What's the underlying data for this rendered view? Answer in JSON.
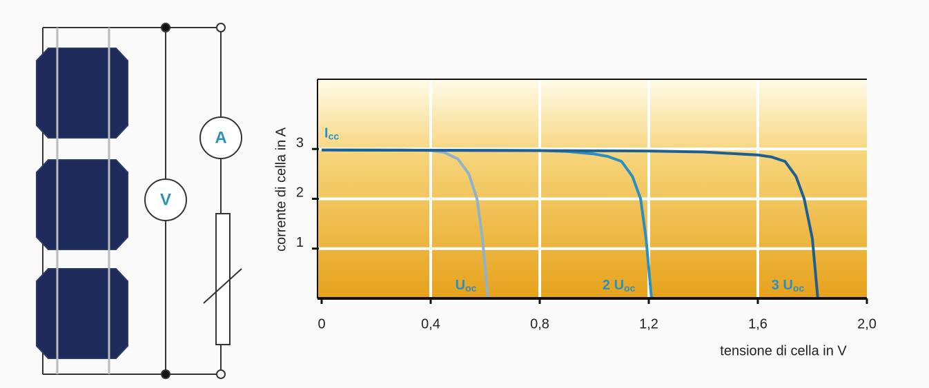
{
  "circuit": {
    "ammeter": "A",
    "voltmeter": "V"
  },
  "chart_data": {
    "type": "line",
    "x_label": "tensione di cella in V",
    "y_label": "corrente di cella in A",
    "xlim": [
      0,
      2.0
    ],
    "ylim": [
      0,
      4.4
    ],
    "xticks": [
      0,
      {
        "value": 0.4,
        "label": "0,4"
      },
      {
        "value": 0.8,
        "label": "0,8"
      },
      {
        "value": 1.2,
        "label": "1,2"
      },
      {
        "value": 1.6,
        "label": "1,6"
      },
      {
        "value": 2.0,
        "label": "2,0"
      }
    ],
    "yticks": [
      1,
      2,
      3
    ],
    "grid": true,
    "series": [
      {
        "color": "#8fb3c9",
        "x": [
          0,
          0.3,
          0.4,
          0.45,
          0.5,
          0.54,
          0.57,
          0.59,
          0.61
        ],
        "values": [
          2.98,
          2.98,
          2.97,
          2.93,
          2.8,
          2.5,
          2.0,
          1.2,
          0
        ]
      },
      {
        "color": "#2b8fc0",
        "x": [
          0,
          0.8,
          0.9,
          1.0,
          1.05,
          1.1,
          1.14,
          1.17,
          1.19,
          1.21
        ],
        "values": [
          2.98,
          2.97,
          2.95,
          2.9,
          2.85,
          2.75,
          2.45,
          2.0,
          1.2,
          0
        ]
      },
      {
        "color": "#1f5f8f",
        "x": [
          0,
          1.2,
          1.4,
          1.6,
          1.65,
          1.7,
          1.74,
          1.77,
          1.8,
          1.82
        ],
        "values": [
          2.98,
          2.96,
          2.94,
          2.88,
          2.84,
          2.75,
          2.45,
          2.0,
          1.2,
          0
        ]
      }
    ],
    "annotations": [
      {
        "text": "I",
        "subscript": "cc",
        "x": 0,
        "y": 3.3
      },
      {
        "text": "U",
        "subscript": "oc",
        "x": 0.48,
        "y": 0.25
      },
      {
        "text": "2 U",
        "subscript": "oc",
        "x": 1.02,
        "y": 0.25
      },
      {
        "text": "3 U",
        "subscript": "oc",
        "x": 1.64,
        "y": 0.25
      }
    ]
  }
}
